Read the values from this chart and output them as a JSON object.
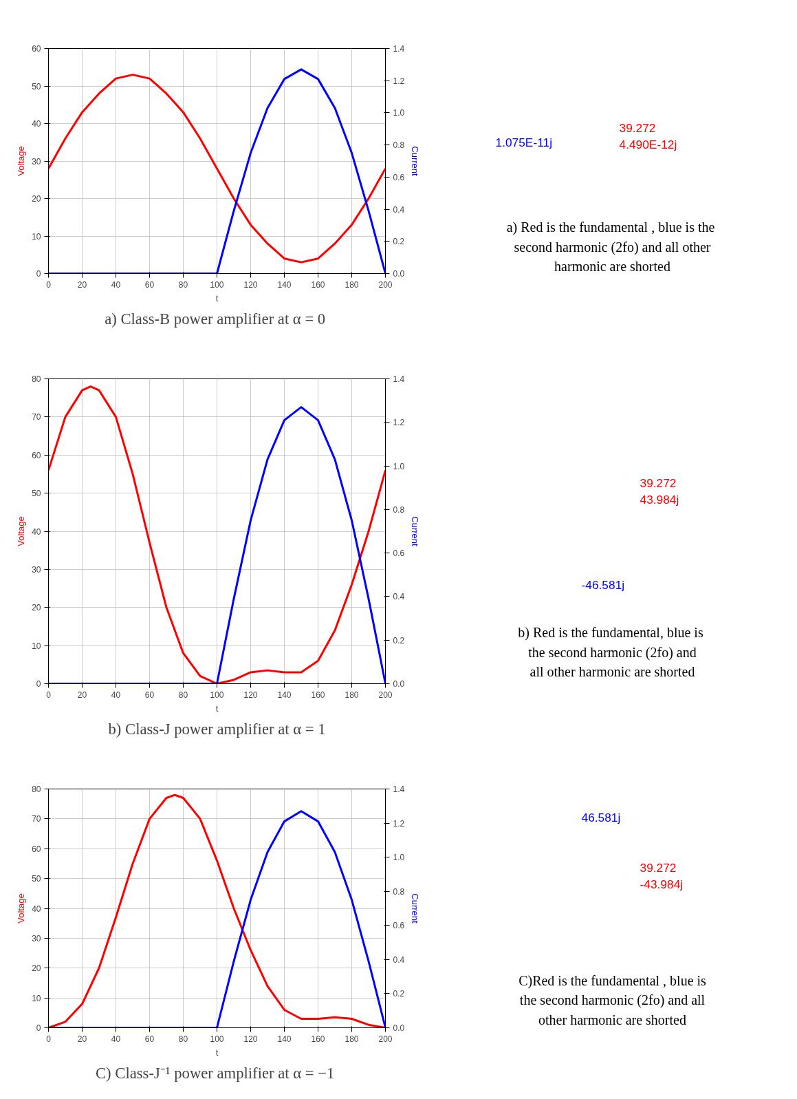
{
  "chart_data": [
    {
      "type": "line",
      "xlabel": "t",
      "ylabel": "Voltage",
      "y2label": "Current",
      "x": [
        0,
        10,
        20,
        30,
        40,
        50,
        60,
        70,
        80,
        90,
        100,
        110,
        120,
        130,
        140,
        150,
        160,
        170,
        180,
        190,
        200
      ],
      "series": [
        {
          "color": "#ff0000",
          "values": [
            28,
            36,
            43,
            48,
            52,
            53,
            52,
            48,
            43,
            36,
            28,
            20,
            13,
            8,
            4,
            3,
            4,
            8,
            13,
            20,
            28
          ]
        },
        {
          "color": "#0000ff",
          "axis": "y2",
          "values": [
            0,
            0,
            0,
            0,
            0,
            0,
            0,
            0,
            0,
            0,
            0,
            0.39,
            0.75,
            1.03,
            1.21,
            1.27,
            1.21,
            1.03,
            0.75,
            0.39,
            0
          ]
        }
      ],
      "xlim": [
        0,
        200
      ],
      "xticks": [
        0,
        20,
        40,
        60,
        80,
        100,
        120,
        140,
        160,
        180,
        200
      ],
      "ylim": [
        0,
        60
      ],
      "yticks": [
        0,
        10,
        20,
        30,
        40,
        50,
        60
      ],
      "y2lim": [
        0,
        1.4
      ],
      "y2ticks": [
        {
          "value": 0,
          "label": "0.0"
        },
        {
          "value": 0.2,
          "label": "0.2"
        },
        {
          "value": 0.4,
          "label": "0.4"
        },
        {
          "value": 0.6,
          "label": "0.6"
        },
        {
          "value": 0.8,
          "label": "0.8"
        },
        {
          "value": 1.0,
          "label": "1.0"
        },
        {
          "value": 1.2,
          "label": "1.2"
        },
        {
          "value": 1.4,
          "label": "1.4"
        }
      ],
      "grid": true,
      "annotations": [
        "a)  Class-B power amplifier at α = 0"
      ]
    },
    {
      "type": "other",
      "annotations": [
        "39.272\n4.490E-12j",
        "1.075E-11j",
        "a)  Red is the fundamental , blue is the\nsecond harmonic (2fo) and all other\nharmonic are shorted"
      ]
    },
    {
      "type": "line",
      "xlabel": "t",
      "ylabel": "Voltage",
      "y2label": "Current",
      "x": [
        0,
        10,
        20,
        25,
        30,
        40,
        50,
        60,
        70,
        80,
        90,
        100,
        110,
        120,
        130,
        140,
        150,
        160,
        170,
        180,
        190,
        200
      ],
      "series": [
        {
          "color": "#ff0000",
          "values": [
            56,
            70,
            77,
            78,
            77,
            70,
            55,
            37,
            20,
            8,
            2,
            0,
            1,
            3,
            3.5,
            3,
            3,
            6,
            14,
            26,
            40,
            56
          ]
        },
        {
          "color": "#0000ff",
          "axis": "y2",
          "values": [
            0,
            0,
            0,
            0,
            0,
            0,
            0,
            0,
            0,
            0,
            0,
            0,
            0.39,
            0.75,
            1.03,
            1.21,
            1.27,
            1.21,
            1.03,
            0.75,
            0.39,
            0
          ]
        }
      ],
      "xlim": [
        0,
        200
      ],
      "xticks": [
        0,
        20,
        40,
        60,
        80,
        100,
        120,
        140,
        160,
        180,
        200
      ],
      "ylim": [
        0,
        80
      ],
      "yticks": [
        0,
        10,
        20,
        30,
        40,
        50,
        60,
        70,
        80
      ],
      "y2lim": [
        0,
        1.4
      ],
      "y2ticks": [
        {
          "value": 0,
          "label": "0.0"
        },
        {
          "value": 0.2,
          "label": "0.2"
        },
        {
          "value": 0.4,
          "label": "0.4"
        },
        {
          "value": 0.6,
          "label": "0.6"
        },
        {
          "value": 0.8,
          "label": "0.8"
        },
        {
          "value": 1.0,
          "label": "1.0"
        },
        {
          "value": 1.2,
          "label": "1.2"
        },
        {
          "value": 1.4,
          "label": "1.4"
        }
      ],
      "grid": true,
      "annotations": [
        "b) Class-J power amplifier at α = 1"
      ]
    },
    {
      "type": "other",
      "annotations": [
        "39.272\n43.984j",
        "-46.581j",
        "b)  Red is the fundamental, blue is\nthe second harmonic (2fo) and\nall other harmonic are shorted"
      ]
    },
    {
      "type": "line",
      "xlabel": "t",
      "ylabel": "Voltage",
      "y2label": "Current",
      "x": [
        0,
        10,
        20,
        30,
        40,
        50,
        60,
        70,
        75,
        80,
        90,
        100,
        110,
        120,
        130,
        140,
        150,
        160,
        170,
        180,
        190,
        200
      ],
      "series": [
        {
          "color": "#ff0000",
          "values": [
            0,
            2,
            8,
            20,
            37,
            55,
            70,
            77,
            78,
            77,
            70,
            56,
            40,
            26,
            14,
            6,
            3,
            3,
            3.5,
            3,
            1,
            0
          ]
        },
        {
          "color": "#0000ff",
          "axis": "y2",
          "values": [
            0,
            0,
            0,
            0,
            0,
            0,
            0,
            0,
            0,
            0,
            0,
            0,
            0.39,
            0.75,
            1.03,
            1.21,
            1.27,
            1.21,
            1.03,
            0.75,
            0.39,
            0
          ]
        }
      ],
      "xlim": [
        0,
        200
      ],
      "xticks": [
        0,
        20,
        40,
        60,
        80,
        100,
        120,
        140,
        160,
        180,
        200
      ],
      "ylim": [
        0,
        80
      ],
      "yticks": [
        0,
        10,
        20,
        30,
        40,
        50,
        60,
        70,
        80
      ],
      "y2lim": [
        0,
        1.4
      ],
      "y2ticks": [
        {
          "value": 0,
          "label": "0.0"
        },
        {
          "value": 0.2,
          "label": "0.2"
        },
        {
          "value": 0.4,
          "label": "0.4"
        },
        {
          "value": 0.6,
          "label": "0.6"
        },
        {
          "value": 0.8,
          "label": "0.8"
        },
        {
          "value": 1.0,
          "label": "1.0"
        },
        {
          "value": 1.2,
          "label": "1.2"
        },
        {
          "value": 1.4,
          "label": "1.4"
        }
      ],
      "grid": true,
      "annotations": [
        "C)  Class-J⁻¹ power amplifier at α = −1"
      ]
    },
    {
      "type": "other",
      "annotations": [
        "39.272\n-43.984j",
        "46.581j",
        "C)Red is the fundamental , blue is\nthe second harmonic (2fo) and all\nother harmonic are shorted"
      ]
    }
  ]
}
